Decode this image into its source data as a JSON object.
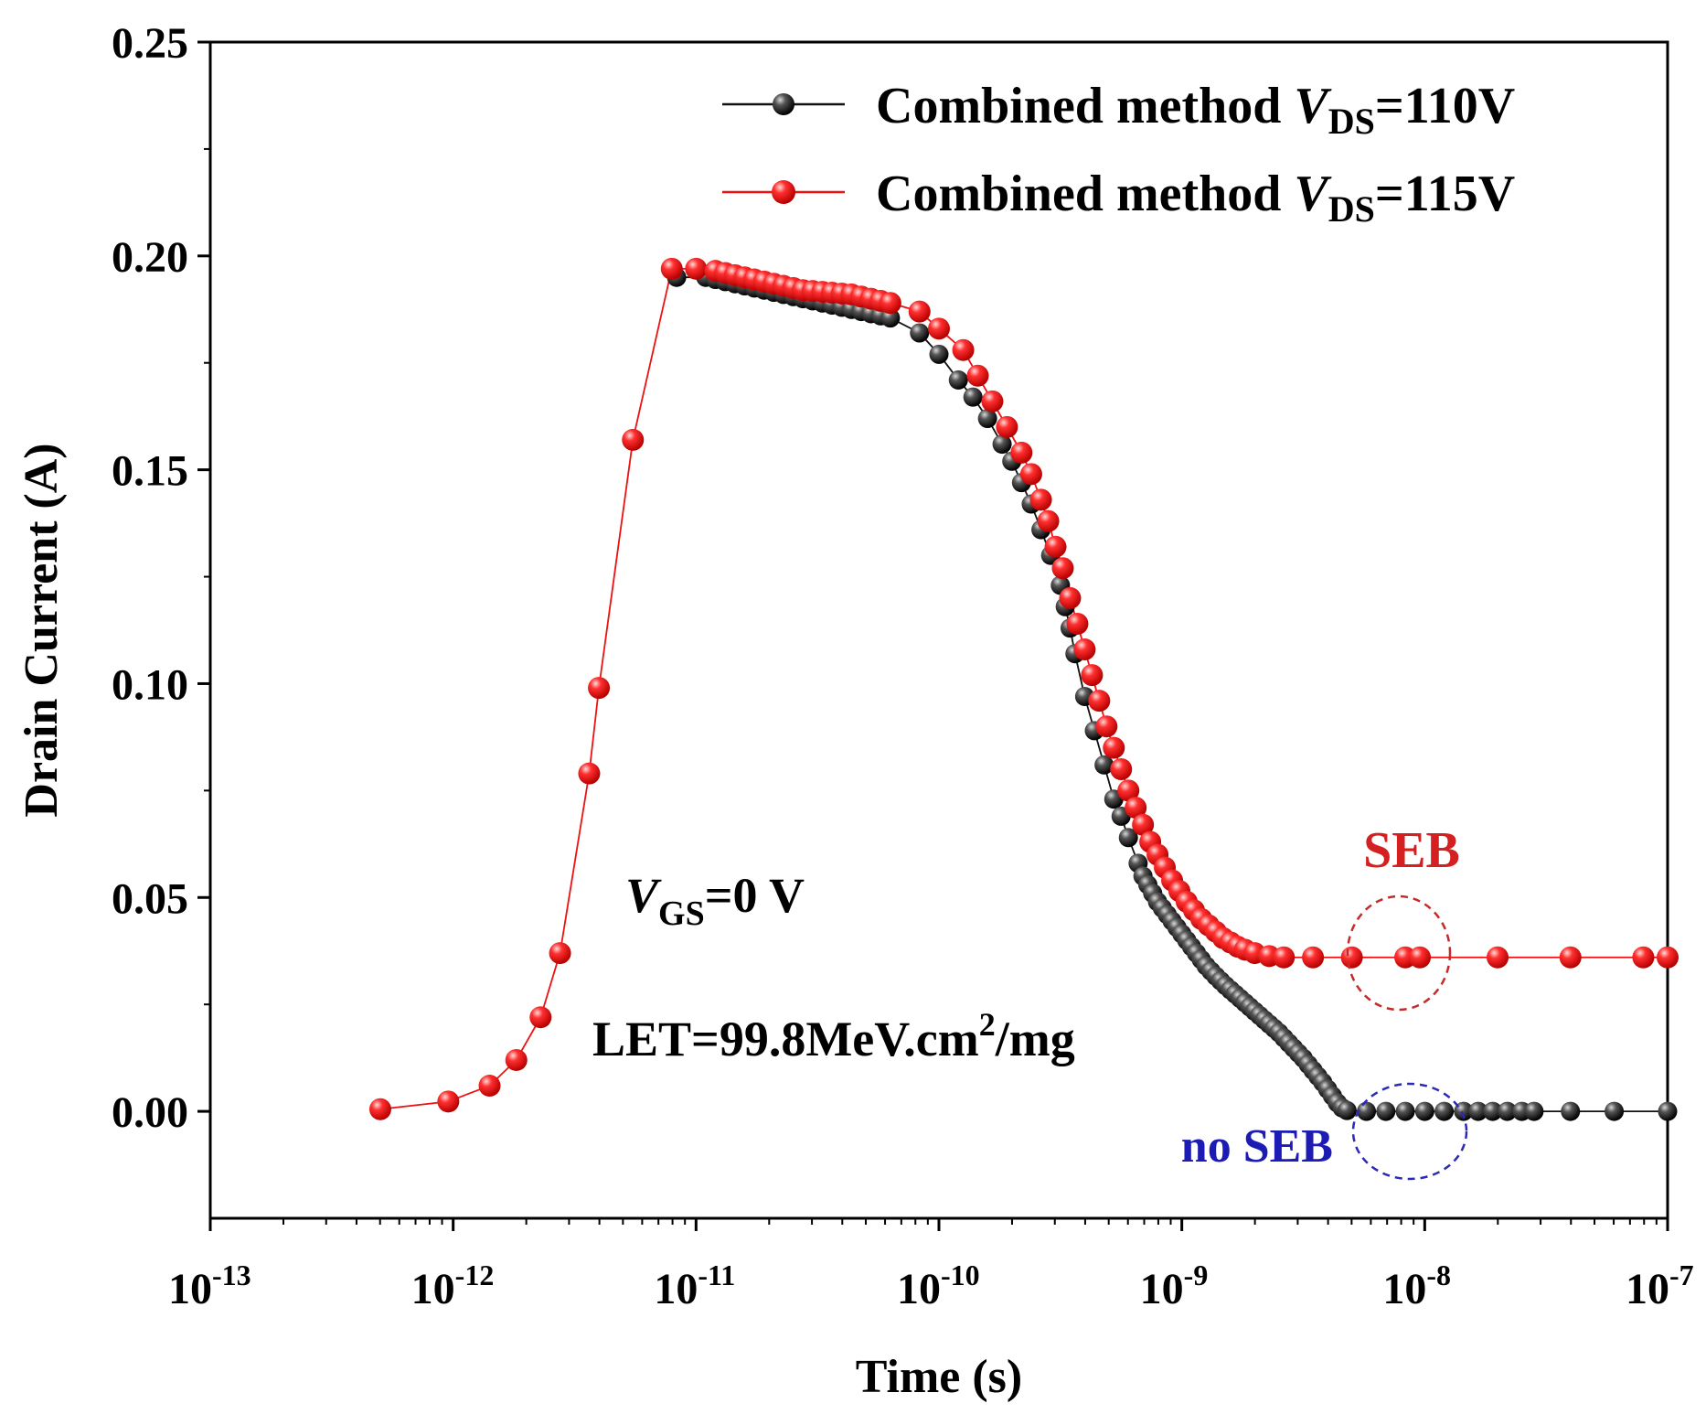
{
  "chart_data": {
    "type": "scatter",
    "xscale": "log",
    "xlim_exp": [
      -13,
      -7
    ],
    "ylim": [
      -0.025,
      0.25
    ],
    "title": "",
    "xlabel": "Time (s)",
    "ylabel": "Drain Current (A)",
    "xtick_base": "10",
    "xticks": [
      {
        "label": "-13",
        "exp": -13
      },
      {
        "label": "-12",
        "exp": -12
      },
      {
        "label": "-11",
        "exp": -11
      },
      {
        "label": "-10",
        "exp": -10
      },
      {
        "label": "-9",
        "exp": -9
      },
      {
        "label": "-8",
        "exp": -8
      },
      {
        "label": "-7",
        "exp": -7
      }
    ],
    "yticks": [
      {
        "label": "0.00",
        "value": 0.0
      },
      {
        "label": "0.05",
        "value": 0.05
      },
      {
        "label": "0.10",
        "value": 0.1
      },
      {
        "label": "0.15",
        "value": 0.15
      },
      {
        "label": "0.20",
        "value": 0.2
      },
      {
        "label": "0.25",
        "value": 0.25
      }
    ],
    "legend": {
      "placement": "top-right",
      "entries": [
        {
          "prefix": "Combined method ",
          "var": "V",
          "sub": "DS",
          "suffix": "=110V",
          "color": "#111111"
        },
        {
          "prefix": "Combined method ",
          "var": "V",
          "sub": "DS",
          "suffix": "=115V",
          "color": "#ee1111"
        }
      ]
    },
    "annotations": {
      "vgs": {
        "var": "V",
        "sub": "GS",
        "suffix": "=0 V"
      },
      "let": {
        "prefix": "LET=99.8MeV.cm",
        "sup": "2",
        "suffix": "/mg"
      },
      "seb": {
        "text": "SEB",
        "color": "#d42020"
      },
      "no_seb": {
        "text": "no SEB",
        "color": "#1c1cb4"
      }
    },
    "series": [
      {
        "name": "Combined method VDS=110V",
        "color": "#111111",
        "points": [
          [
            -11.08,
            0.195
          ],
          [
            -10.96,
            0.195
          ],
          [
            -10.92,
            0.1945
          ],
          [
            -10.88,
            0.194
          ],
          [
            -10.84,
            0.1935
          ],
          [
            -10.8,
            0.193
          ],
          [
            -10.76,
            0.1925
          ],
          [
            -10.72,
            0.192
          ],
          [
            -10.68,
            0.1915
          ],
          [
            -10.64,
            0.191
          ],
          [
            -10.6,
            0.1905
          ],
          [
            -10.56,
            0.19
          ],
          [
            -10.52,
            0.1895
          ],
          [
            -10.48,
            0.189
          ],
          [
            -10.44,
            0.1885
          ],
          [
            -10.4,
            0.188
          ],
          [
            -10.36,
            0.1875
          ],
          [
            -10.32,
            0.187
          ],
          [
            -10.28,
            0.1865
          ],
          [
            -10.24,
            0.186
          ],
          [
            -10.2,
            0.1855
          ],
          [
            -10.08,
            0.182
          ],
          [
            -10.0,
            0.177
          ],
          [
            -9.92,
            0.171
          ],
          [
            -9.86,
            0.167
          ],
          [
            -9.8,
            0.162
          ],
          [
            -9.74,
            0.156
          ],
          [
            -9.7,
            0.152
          ],
          [
            -9.66,
            0.147
          ],
          [
            -9.62,
            0.142
          ],
          [
            -9.58,
            0.136
          ],
          [
            -9.54,
            0.13
          ],
          [
            -9.5,
            0.123
          ],
          [
            -9.48,
            0.118
          ],
          [
            -9.46,
            0.113
          ],
          [
            -9.44,
            0.107
          ],
          [
            -9.4,
            0.097
          ],
          [
            -9.36,
            0.089
          ],
          [
            -9.32,
            0.081
          ],
          [
            -9.28,
            0.073
          ],
          [
            -9.25,
            0.069
          ],
          [
            -9.22,
            0.064
          ],
          [
            -9.18,
            0.058
          ],
          [
            -9.16,
            0.055
          ],
          [
            -9.14,
            0.053
          ],
          [
            -9.12,
            0.051
          ],
          [
            -9.1,
            0.049
          ],
          [
            -9.08,
            0.0475
          ],
          [
            -9.06,
            0.046
          ],
          [
            -9.04,
            0.0445
          ],
          [
            -9.02,
            0.043
          ],
          [
            -9.0,
            0.0415
          ],
          [
            -8.98,
            0.04
          ],
          [
            -8.96,
            0.0385
          ],
          [
            -8.94,
            0.037
          ],
          [
            -8.92,
            0.0355
          ],
          [
            -8.9,
            0.034
          ],
          [
            -8.88,
            0.0328
          ],
          [
            -8.86,
            0.0316
          ],
          [
            -8.84,
            0.0305
          ],
          [
            -8.82,
            0.0294
          ],
          [
            -8.8,
            0.0284
          ],
          [
            -8.78,
            0.0274
          ],
          [
            -8.76,
            0.0264
          ],
          [
            -8.74,
            0.0254
          ],
          [
            -8.72,
            0.0244
          ],
          [
            -8.7,
            0.0234
          ],
          [
            -8.68,
            0.0224
          ],
          [
            -8.66,
            0.0214
          ],
          [
            -8.64,
            0.0204
          ],
          [
            -8.62,
            0.0194
          ],
          [
            -8.6,
            0.0184
          ],
          [
            -8.58,
            0.0172
          ],
          [
            -8.56,
            0.016
          ],
          [
            -8.54,
            0.0148
          ],
          [
            -8.52,
            0.0136
          ],
          [
            -8.5,
            0.0124
          ],
          [
            -8.48,
            0.011
          ],
          [
            -8.46,
            0.0096
          ],
          [
            -8.44,
            0.0082
          ],
          [
            -8.42,
            0.0068
          ],
          [
            -8.4,
            0.0052
          ],
          [
            -8.38,
            0.0036
          ],
          [
            -8.36,
            0.002
          ],
          [
            -8.34,
            0.0008
          ],
          [
            -8.32,
            0.0002
          ],
          [
            -8.24,
            0.0
          ],
          [
            -8.16,
            0.0
          ],
          [
            -8.08,
            0.0
          ],
          [
            -8.0,
            0.0
          ],
          [
            -7.92,
            0.0
          ],
          [
            -7.84,
            0.0
          ],
          [
            -7.78,
            0.0
          ],
          [
            -7.72,
            0.0
          ],
          [
            -7.66,
            0.0
          ],
          [
            -7.6,
            0.0
          ],
          [
            -7.55,
            0.0
          ],
          [
            -7.4,
            0.0
          ],
          [
            -7.22,
            0.0
          ],
          [
            -7.0,
            0.0
          ]
        ]
      },
      {
        "name": "Combined method VDS=115V",
        "color": "#ee1111",
        "points": [
          [
            -12.3,
            0.0005
          ],
          [
            -12.02,
            0.0023
          ],
          [
            -11.85,
            0.006
          ],
          [
            -11.74,
            0.012
          ],
          [
            -11.64,
            0.022
          ],
          [
            -11.56,
            0.037
          ],
          [
            -11.44,
            0.079
          ],
          [
            -11.4,
            0.099
          ],
          [
            -11.26,
            0.157
          ],
          [
            -11.1,
            0.197
          ],
          [
            -11.0,
            0.197
          ],
          [
            -10.92,
            0.1965
          ],
          [
            -10.88,
            0.196
          ],
          [
            -10.84,
            0.1955
          ],
          [
            -10.8,
            0.195
          ],
          [
            -10.76,
            0.1945
          ],
          [
            -10.72,
            0.194
          ],
          [
            -10.68,
            0.1935
          ],
          [
            -10.64,
            0.193
          ],
          [
            -10.6,
            0.1925
          ],
          [
            -10.56,
            0.192
          ],
          [
            -10.52,
            0.1918
          ],
          [
            -10.48,
            0.1916
          ],
          [
            -10.44,
            0.1914
          ],
          [
            -10.4,
            0.1912
          ],
          [
            -10.36,
            0.191
          ],
          [
            -10.32,
            0.1905
          ],
          [
            -10.28,
            0.19
          ],
          [
            -10.24,
            0.1895
          ],
          [
            -10.2,
            0.189
          ],
          [
            -10.08,
            0.187
          ],
          [
            -10.0,
            0.183
          ],
          [
            -9.9,
            0.178
          ],
          [
            -9.84,
            0.172
          ],
          [
            -9.78,
            0.166
          ],
          [
            -9.72,
            0.16
          ],
          [
            -9.66,
            0.154
          ],
          [
            -9.62,
            0.149
          ],
          [
            -9.58,
            0.143
          ],
          [
            -9.55,
            0.138
          ],
          [
            -9.52,
            0.132
          ],
          [
            -9.49,
            0.127
          ],
          [
            -9.46,
            0.12
          ],
          [
            -9.43,
            0.114
          ],
          [
            -9.4,
            0.108
          ],
          [
            -9.37,
            0.102
          ],
          [
            -9.34,
            0.096
          ],
          [
            -9.31,
            0.09
          ],
          [
            -9.28,
            0.085
          ],
          [
            -9.25,
            0.08
          ],
          [
            -9.22,
            0.075
          ],
          [
            -9.19,
            0.071
          ],
          [
            -9.16,
            0.067
          ],
          [
            -9.13,
            0.063
          ],
          [
            -9.1,
            0.06
          ],
          [
            -9.07,
            0.057
          ],
          [
            -9.04,
            0.054
          ],
          [
            -9.01,
            0.0515
          ],
          [
            -8.98,
            0.049
          ],
          [
            -8.95,
            0.047
          ],
          [
            -8.92,
            0.045
          ],
          [
            -8.89,
            0.0435
          ],
          [
            -8.86,
            0.042
          ],
          [
            -8.83,
            0.0405
          ],
          [
            -8.8,
            0.0395
          ],
          [
            -8.77,
            0.0385
          ],
          [
            -8.74,
            0.0378
          ],
          [
            -8.7,
            0.037
          ],
          [
            -8.64,
            0.0363
          ],
          [
            -8.58,
            0.036
          ],
          [
            -8.46,
            0.036
          ],
          [
            -8.3,
            0.036
          ],
          [
            -8.08,
            0.036
          ],
          [
            -8.02,
            0.036
          ],
          [
            -7.7,
            0.036
          ],
          [
            -7.4,
            0.036
          ],
          [
            -7.1,
            0.036
          ],
          [
            -7.0,
            0.036
          ]
        ]
      }
    ]
  }
}
